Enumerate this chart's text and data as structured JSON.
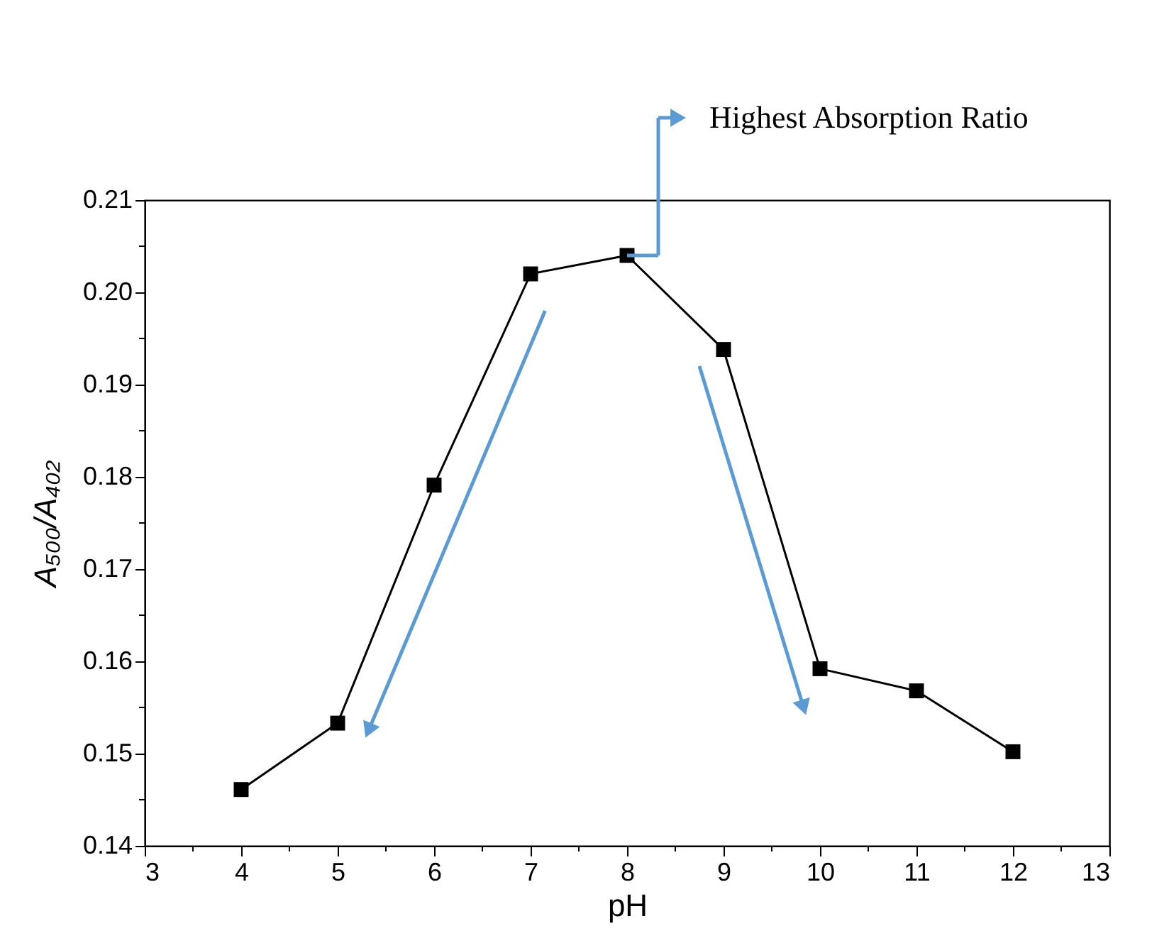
{
  "chart_data": {
    "type": "line",
    "x": [
      4,
      5,
      6,
      7,
      8,
      9,
      10,
      11,
      12
    ],
    "series": [
      {
        "color": "#000000",
        "values": [
          0.1461,
          0.1533,
          0.1791,
          0.202,
          0.204,
          0.1938,
          0.1592,
          0.1568,
          0.1502
        ]
      }
    ],
    "xlabel": "pH",
    "ylabel": "A₅₀₀/A₄₀₂",
    "xlim": [
      3,
      13
    ],
    "xticks": [
      3,
      {
        "value": 3.5,
        "label": null
      },
      4,
      {
        "value": 4.5,
        "label": null
      },
      5,
      {
        "value": 5.5,
        "label": null
      },
      6,
      {
        "value": 6.5,
        "label": null
      },
      7,
      {
        "value": 7.5,
        "label": null
      },
      8,
      {
        "value": 8.5,
        "label": null
      },
      9,
      {
        "value": 9.5,
        "label": null
      },
      10,
      {
        "value": 10.5,
        "label": null
      },
      11,
      {
        "value": 11.5,
        "label": null
      },
      12,
      {
        "value": 12.5,
        "label": null
      },
      13
    ],
    "ylim": [
      0.14,
      0.21
    ],
    "yticks": [
      {
        "value": 0.14,
        "label": "0.14"
      },
      {
        "value": 0.145,
        "label": null
      },
      {
        "value": 0.15,
        "label": "0.15"
      },
      {
        "value": 0.155,
        "label": null
      },
      {
        "value": 0.16,
        "label": "0.16"
      },
      {
        "value": 0.165,
        "label": null
      },
      {
        "value": 0.17,
        "label": "0.17"
      },
      {
        "value": 0.175,
        "label": null
      },
      {
        "value": 0.18,
        "label": "0.18"
      },
      {
        "value": 0.185,
        "label": null
      },
      {
        "value": 0.19,
        "label": "0.19"
      },
      {
        "value": 0.195,
        "label": null
      },
      {
        "value": 0.2,
        "label": "0.20"
      },
      {
        "value": 0.205,
        "label": null
      },
      {
        "value": 0.21,
        "label": "0.21"
      }
    ],
    "annotations": [
      "Highest Absorption Ratio"
    ],
    "marker": "square",
    "line_style": "solid",
    "grid": false
  }
}
